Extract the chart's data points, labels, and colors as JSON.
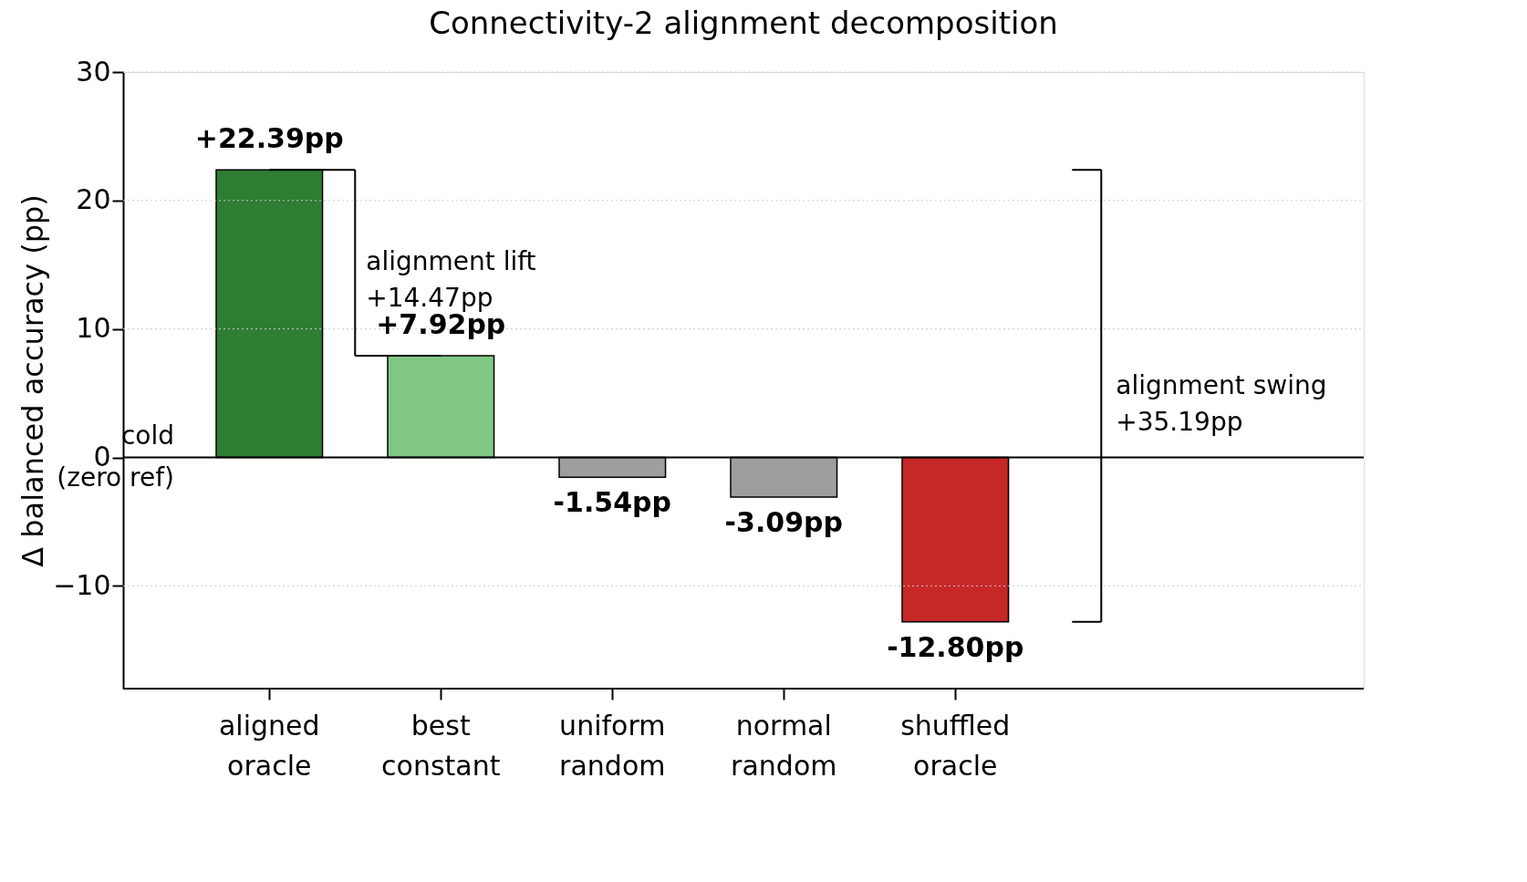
{
  "chart_data": {
    "type": "bar",
    "title": "Connectivity-2 alignment decomposition",
    "ylabel": "Δ balanced accuracy (pp)",
    "categories": [
      "aligned oracle",
      "best constant",
      "uniform random",
      "normal random",
      "shuffled oracle"
    ],
    "values": [
      22.39,
      7.92,
      -1.54,
      -3.09,
      -12.8
    ],
    "colors": [
      "#2e7d32",
      "#81c784",
      "#9e9e9e",
      "#9e9e9e",
      "#c62828"
    ],
    "value_labels": [
      "+22.39pp",
      "+7.92pp",
      "-1.54pp",
      "-3.09pp",
      "-12.80pp"
    ],
    "ylim": [
      -18,
      30
    ],
    "yticks": [
      {
        "value": -10,
        "label": "−10"
      },
      0,
      10,
      20,
      30
    ],
    "ref_lines": [
      {
        "axis": "y",
        "value": 0,
        "label": "cold\n(zero ref)",
        "color": "#000000"
      }
    ],
    "annotations": [
      "alignment lift\n+14.47pp",
      "alignment swing\n+35.19pp"
    ],
    "grid": "y"
  }
}
